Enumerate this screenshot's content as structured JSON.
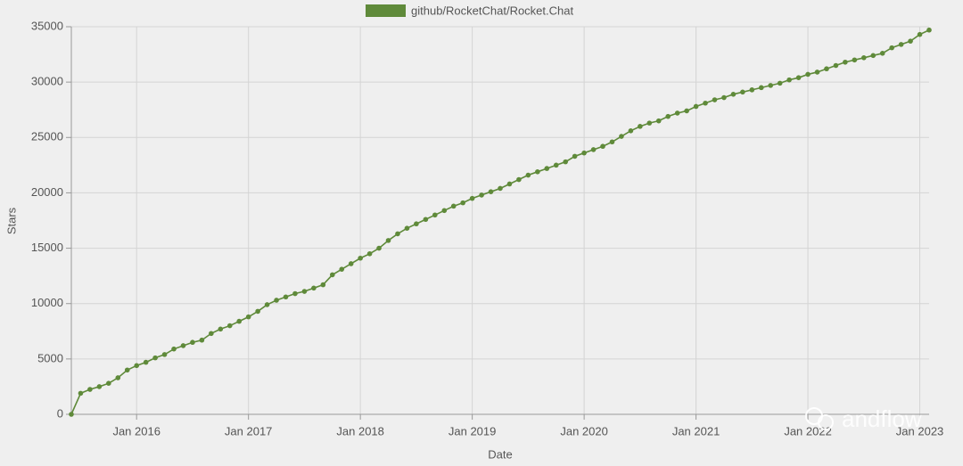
{
  "chart_data": {
    "type": "line",
    "x_label": "Date",
    "y_label": "Stars",
    "x": [
      "2015-06",
      "2015-07",
      "2015-08",
      "2015-09",
      "2015-10",
      "2015-11",
      "2015-12",
      "2016-01",
      "2016-02",
      "2016-03",
      "2016-04",
      "2016-05",
      "2016-06",
      "2016-07",
      "2016-08",
      "2016-09",
      "2016-10",
      "2016-11",
      "2016-12",
      "2017-01",
      "2017-02",
      "2017-03",
      "2017-04",
      "2017-05",
      "2017-06",
      "2017-07",
      "2017-08",
      "2017-09",
      "2017-10",
      "2017-11",
      "2017-12",
      "2018-01",
      "2018-02",
      "2018-03",
      "2018-04",
      "2018-05",
      "2018-06",
      "2018-07",
      "2018-08",
      "2018-09",
      "2018-10",
      "2018-11",
      "2018-12",
      "2019-01",
      "2019-02",
      "2019-03",
      "2019-04",
      "2019-05",
      "2019-06",
      "2019-07",
      "2019-08",
      "2019-09",
      "2019-10",
      "2019-11",
      "2019-12",
      "2020-01",
      "2020-02",
      "2020-03",
      "2020-04",
      "2020-05",
      "2020-06",
      "2020-07",
      "2020-08",
      "2020-09",
      "2020-10",
      "2020-11",
      "2020-12",
      "2021-01",
      "2021-02",
      "2021-03",
      "2021-04",
      "2021-05",
      "2021-06",
      "2021-07",
      "2021-08",
      "2021-09",
      "2021-10",
      "2021-11",
      "2021-12",
      "2022-01",
      "2022-02",
      "2022-03",
      "2022-04",
      "2022-05",
      "2022-06",
      "2022-07",
      "2022-08",
      "2022-09",
      "2022-10",
      "2022-11",
      "2022-12",
      "2023-01",
      "2023-02"
    ],
    "series": [
      {
        "name": "github/RocketChat/Rocket.Chat",
        "color": "#5f8a3a",
        "values": [
          0,
          1900,
          2250,
          2500,
          2800,
          3300,
          4000,
          4400,
          4700,
          5100,
          5400,
          5900,
          6200,
          6500,
          6700,
          7300,
          7700,
          8000,
          8400,
          8800,
          9300,
          9900,
          10300,
          10600,
          10900,
          11100,
          11400,
          11700,
          12600,
          13100,
          13600,
          14100,
          14500,
          15000,
          15700,
          16300,
          16800,
          17200,
          17600,
          18000,
          18400,
          18800,
          19100,
          19500,
          19800,
          20100,
          20400,
          20800,
          21200,
          21600,
          21900,
          22200,
          22500,
          22800,
          23300,
          23600,
          23900,
          24200,
          24600,
          25100,
          25600,
          26000,
          26300,
          26500,
          26900,
          27200,
          27400,
          27800,
          28100,
          28400,
          28600,
          28900,
          29100,
          29300,
          29500,
          29700,
          29900,
          30200,
          30400,
          30700,
          30900,
          31200,
          31500,
          31800,
          32000,
          32200,
          32400,
          32600,
          33100,
          33400,
          33700,
          34300,
          34700
        ]
      }
    ],
    "xlim": [
      "2015-06",
      "2023-02"
    ],
    "xticks": [
      {
        "value": "2016-01",
        "label": "Jan 2016"
      },
      {
        "value": "2017-01",
        "label": "Jan 2017"
      },
      {
        "value": "2018-01",
        "label": "Jan 2018"
      },
      {
        "value": "2019-01",
        "label": "Jan 2019"
      },
      {
        "value": "2020-01",
        "label": "Jan 2020"
      },
      {
        "value": "2021-01",
        "label": "Jan 2021"
      },
      {
        "value": "2022-01",
        "label": "Jan 2022"
      },
      {
        "value": "2023-01",
        "label": "Jan 2023"
      }
    ],
    "ylim": [
      0,
      35000
    ],
    "yticks": [
      0,
      5000,
      10000,
      15000,
      20000,
      25000,
      30000,
      35000
    ],
    "grid": true,
    "watermark": "andflow"
  }
}
